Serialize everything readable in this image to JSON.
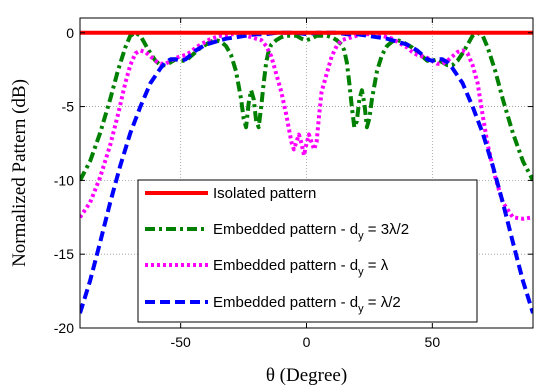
{
  "chart_data": {
    "type": "line",
    "xlabel": "θ (Degree)",
    "ylabel": "Normalized Pattern (dB)",
    "xlim": [
      -90,
      90
    ],
    "ylim": [
      -20,
      1
    ],
    "xticks": [
      "-50",
      "0",
      "50"
    ],
    "xtick_values": [
      -50,
      0,
      50
    ],
    "yticks": [
      "0",
      "-5",
      "-10",
      "-15",
      "-20"
    ],
    "ytick_values": [
      0,
      -5,
      -10,
      -15,
      -20
    ],
    "grid": true,
    "legend_position": "lower-center",
    "legend": [
      {
        "pre": "Isolated pattern",
        "sub": "",
        "post": ""
      },
      {
        "pre": "Embedded pattern - d",
        "sub": "y",
        "post": " = 3λ/2"
      },
      {
        "pre": "Embedded pattern - d",
        "sub": "y",
        "post": " = λ"
      },
      {
        "pre": "Embedded pattern - d",
        "sub": "y",
        "post": " = λ/2"
      }
    ],
    "series": [
      {
        "name": "Isolated pattern",
        "color": "#ff0000",
        "dash": "",
        "width": 4,
        "x": [
          -90,
          90
        ],
        "y": [
          0,
          0
        ]
      },
      {
        "name": "Embedded pattern - dy = 3λ/2",
        "color": "#008000",
        "dash": "10,4,3,4",
        "width": 4,
        "x": [
          -90,
          -86,
          -82,
          -78,
          -75,
          -72,
          -70,
          -68,
          -66,
          -64,
          -62,
          -60,
          -58,
          -56,
          -54,
          -52,
          -50,
          -48,
          -46,
          -44,
          -42,
          -40,
          -38,
          -36,
          -34,
          -32,
          -30,
          -28,
          -26,
          -25,
          -24,
          -23,
          -22,
          -21,
          -20,
          -19,
          -18,
          -17,
          -16,
          -15,
          -14,
          -12,
          -10,
          -8,
          -6,
          -4,
          -2,
          0,
          2,
          4,
          6,
          8,
          10,
          12,
          14,
          15,
          16,
          17,
          18,
          19,
          20,
          21,
          22,
          23,
          24,
          25,
          26,
          28,
          30,
          32,
          34,
          36,
          38,
          40,
          42,
          44,
          46,
          48,
          50,
          52,
          54,
          56,
          58,
          60,
          62,
          64,
          66,
          68,
          70,
          72,
          75,
          78,
          82,
          86,
          90
        ],
        "y": [
          -10,
          -8.7,
          -6.8,
          -4.5,
          -2.6,
          -1.0,
          -0.2,
          0.0,
          -0.2,
          -0.8,
          -1.4,
          -1.9,
          -2.2,
          -2.2,
          -2.0,
          -1.8,
          -1.9,
          -1.9,
          -1.6,
          -1.3,
          -1.0,
          -0.8,
          -0.6,
          -0.5,
          -0.6,
          -0.9,
          -1.5,
          -2.6,
          -4.5,
          -5.8,
          -6.4,
          -4.8,
          -3.9,
          -4.5,
          -6.0,
          -6.4,
          -5.0,
          -3.4,
          -2.0,
          -1.2,
          -0.8,
          -0.5,
          -0.3,
          -0.2,
          -0.2,
          -0.2,
          -0.4,
          -0.5,
          -0.4,
          -0.2,
          -0.2,
          -0.2,
          -0.3,
          -0.5,
          -0.8,
          -1.2,
          -2.0,
          -3.4,
          -5.0,
          -6.4,
          -6.0,
          -4.5,
          -3.9,
          -4.8,
          -6.4,
          -5.8,
          -4.5,
          -2.6,
          -1.5,
          -0.9,
          -0.6,
          -0.5,
          -0.6,
          -0.8,
          -1.0,
          -1.3,
          -1.6,
          -1.9,
          -1.9,
          -1.8,
          -2.0,
          -2.2,
          -2.2,
          -1.9,
          -1.4,
          -0.8,
          -0.2,
          0.0,
          -0.2,
          -1.0,
          -2.6,
          -4.5,
          -6.8,
          -8.7,
          -10
        ]
      },
      {
        "name": "Embedded pattern - dy = λ",
        "color": "#ff00ff",
        "dash": "3,3",
        "width": 4,
        "x": [
          -90,
          -86,
          -82,
          -78,
          -75,
          -72,
          -70,
          -68,
          -66,
          -64,
          -62,
          -60,
          -58,
          -56,
          -54,
          -52,
          -50,
          -48,
          -46,
          -44,
          -42,
          -40,
          -38,
          -36,
          -34,
          -32,
          -30,
          -28,
          -26,
          -24,
          -22,
          -20,
          -18,
          -16,
          -14,
          -12,
          -10,
          -8,
          -6,
          -5,
          -4,
          -3,
          -2,
          -1,
          0,
          1,
          2,
          3,
          4,
          5,
          6,
          8,
          10,
          12,
          14,
          16,
          18,
          20,
          22,
          24,
          26,
          28,
          30,
          32,
          34,
          36,
          38,
          40,
          42,
          44,
          46,
          48,
          50,
          52,
          54,
          56,
          58,
          60,
          62,
          64,
          66,
          68,
          70,
          72,
          75,
          78,
          82,
          86,
          90
        ],
        "y": [
          -12.5,
          -11.5,
          -9.8,
          -7.6,
          -5.6,
          -3.4,
          -2.2,
          -1.4,
          -1.2,
          -1.3,
          -1.6,
          -1.9,
          -2.1,
          -2.1,
          -1.9,
          -1.7,
          -1.6,
          -1.5,
          -1.3,
          -1.0,
          -0.8,
          -0.6,
          -0.4,
          -0.3,
          -0.2,
          -0.2,
          -0.1,
          -0.1,
          -0.1,
          -0.2,
          -0.3,
          -0.4,
          -0.5,
          -0.9,
          -1.6,
          -2.8,
          -4.0,
          -5.6,
          -7.4,
          -7.9,
          -7.4,
          -6.9,
          -7.5,
          -8.3,
          -7.5,
          -6.9,
          -7.4,
          -7.9,
          -7.4,
          -5.6,
          -4.0,
          -2.8,
          -1.6,
          -0.9,
          -0.5,
          -0.4,
          -0.3,
          -0.2,
          -0.1,
          -0.1,
          -0.1,
          -0.2,
          -0.2,
          -0.3,
          -0.4,
          -0.6,
          -0.8,
          -1.0,
          -1.3,
          -1.5,
          -1.6,
          -1.7,
          -1.9,
          -2.1,
          -2.1,
          -1.9,
          -1.6,
          -1.3,
          -1.2,
          -1.4,
          -2.2,
          -3.4,
          -5.6,
          -7.6,
          -9.8,
          -11.5,
          -12.5,
          -12.6,
          -12.5
        ]
      },
      {
        "name": "Embedded pattern - dy = λ/2",
        "color": "#0000ff",
        "dash": "10,5",
        "width": 4,
        "x": [
          -90,
          -86,
          -82,
          -78,
          -74,
          -70,
          -66,
          -62,
          -58,
          -56,
          -54,
          -52,
          -50,
          -48,
          -46,
          -44,
          -42,
          -40,
          -36,
          -32,
          -28,
          -24,
          -20,
          -16,
          -12,
          -8,
          -4,
          0,
          4,
          8,
          12,
          16,
          20,
          24,
          28,
          32,
          36,
          40,
          42,
          44,
          46,
          48,
          50,
          52,
          54,
          56,
          58,
          62,
          66,
          70,
          74,
          78,
          82,
          86,
          90
        ],
        "y": [
          -19,
          -16.8,
          -14.2,
          -11.5,
          -9.0,
          -6.8,
          -5.0,
          -3.4,
          -2.4,
          -2.0,
          -1.8,
          -1.8,
          -1.9,
          -1.8,
          -1.5,
          -1.2,
          -1.0,
          -0.8,
          -0.6,
          -0.4,
          -0.3,
          -0.2,
          -0.1,
          -0.1,
          0.0,
          0.0,
          0.0,
          -0.1,
          0.0,
          0.0,
          0.0,
          -0.1,
          -0.1,
          -0.2,
          -0.3,
          -0.4,
          -0.6,
          -0.8,
          -1.0,
          -1.2,
          -1.5,
          -1.8,
          -1.9,
          -1.8,
          -1.8,
          -2.0,
          -2.4,
          -3.4,
          -5.0,
          -6.8,
          -9.0,
          -11.5,
          -14.2,
          -16.8,
          -19
        ]
      }
    ]
  }
}
